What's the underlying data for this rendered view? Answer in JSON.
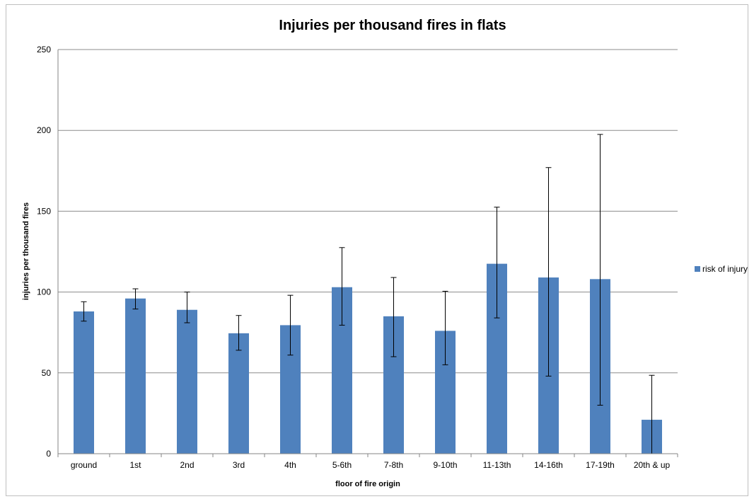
{
  "chart_data": {
    "type": "bar",
    "title": "Injuries per thousand fires in flats",
    "xlabel": "floor of fire origin",
    "ylabel": "injuries per thousand fires",
    "ylim": [
      0,
      250
    ],
    "yticks": [
      0,
      50,
      100,
      150,
      200,
      250
    ],
    "grid": true,
    "legend_position": "right",
    "categories": [
      "ground",
      "1st",
      "2nd",
      "3rd",
      "4th",
      "5-6th",
      "7-8th",
      "9-10th",
      "11-13th",
      "14-16th",
      "17-19th",
      "20th & up"
    ],
    "series": [
      {
        "name": "risk of injury",
        "color": "#4f81bd",
        "values": [
          88,
          96,
          89,
          74.5,
          79.5,
          103,
          85,
          76,
          117.5,
          109,
          108,
          21
        ],
        "error_low": [
          82,
          89.5,
          81,
          64,
          61,
          79.5,
          60,
          55,
          84,
          48,
          30,
          0
        ],
        "error_high": [
          94,
          102,
          100,
          85.5,
          98,
          127.5,
          109,
          100.5,
          152.5,
          177,
          197.5,
          48.5
        ]
      }
    ]
  }
}
